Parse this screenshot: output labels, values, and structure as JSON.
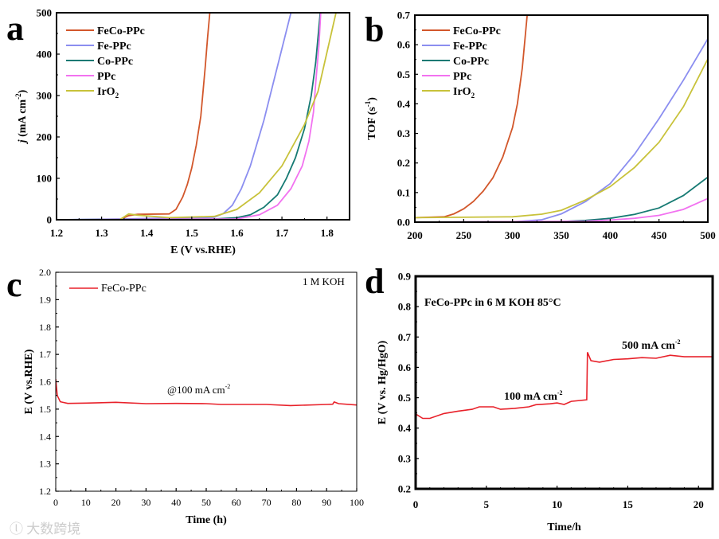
{
  "chart_data": [
    {
      "panel": "a",
      "type": "line",
      "xlabel": "E (V vs.RHE)",
      "ylabel_italic": "j",
      "ylabel": " (mA cm",
      "ylabel_sup": "-2",
      "ylabel_end": ")",
      "xlim": [
        1.2,
        1.85
      ],
      "ylim": [
        0,
        500
      ],
      "xticks": [
        1.2,
        1.3,
        1.4,
        1.5,
        1.6,
        1.7,
        1.8
      ],
      "yticks": [
        0,
        100,
        200,
        300,
        400,
        500
      ],
      "xtick_labels": [
        "1.2",
        "1.3",
        "1.4",
        "1.5",
        "1.6",
        "1.7",
        "1.8"
      ],
      "ytick_labels": [
        "0",
        "100",
        "200",
        "300",
        "400",
        "500"
      ],
      "legend_position": "top-left",
      "series": [
        {
          "name": "FeCo-PPc",
          "color": "#d2572b",
          "points": [
            [
              1.2,
              0
            ],
            [
              1.34,
              0
            ],
            [
              1.36,
              10
            ],
            [
              1.38,
              13
            ],
            [
              1.45,
              14
            ],
            [
              1.465,
              25
            ],
            [
              1.48,
              55
            ],
            [
              1.49,
              85
            ],
            [
              1.5,
              125
            ],
            [
              1.51,
              180
            ],
            [
              1.52,
              250
            ],
            [
              1.53,
              370
            ],
            [
              1.535,
              440
            ],
            [
              1.54,
              500
            ]
          ]
        },
        {
          "name": "Fe-PPc",
          "color": "#8b8ef0",
          "points": [
            [
              1.2,
              0
            ],
            [
              1.35,
              2
            ],
            [
              1.4,
              3
            ],
            [
              1.55,
              6
            ],
            [
              1.57,
              15
            ],
            [
              1.59,
              35
            ],
            [
              1.61,
              75
            ],
            [
              1.63,
              130
            ],
            [
              1.66,
              240
            ],
            [
              1.69,
              370
            ],
            [
              1.72,
              500
            ]
          ]
        },
        {
          "name": "Co-PPc",
          "color": "#167a73",
          "points": [
            [
              1.2,
              0
            ],
            [
              1.55,
              2
            ],
            [
              1.6,
              5
            ],
            [
              1.63,
              12
            ],
            [
              1.66,
              30
            ],
            [
              1.69,
              60
            ],
            [
              1.71,
              100
            ],
            [
              1.73,
              150
            ],
            [
              1.75,
              220
            ],
            [
              1.765,
              300
            ],
            [
              1.775,
              380
            ],
            [
              1.785,
              500
            ]
          ]
        },
        {
          "name": "PPc",
          "color": "#f272f0",
          "points": [
            [
              1.2,
              0
            ],
            [
              1.6,
              2
            ],
            [
              1.65,
              12
            ],
            [
              1.69,
              35
            ],
            [
              1.72,
              75
            ],
            [
              1.745,
              130
            ],
            [
              1.76,
              190
            ],
            [
              1.77,
              260
            ],
            [
              1.775,
              330
            ],
            [
              1.782,
              420
            ],
            [
              1.786,
              500
            ]
          ]
        },
        {
          "name": "IrO",
          "name_sub": "2",
          "color": "#c8c23a",
          "points": [
            [
              1.2,
              0
            ],
            [
              1.34,
              0
            ],
            [
              1.36,
              14
            ],
            [
              1.38,
              11
            ],
            [
              1.45,
              5
            ],
            [
              1.55,
              8
            ],
            [
              1.6,
              25
            ],
            [
              1.65,
              65
            ],
            [
              1.7,
              130
            ],
            [
              1.75,
              230
            ],
            [
              1.78,
              310
            ],
            [
              1.82,
              500
            ]
          ]
        }
      ]
    },
    {
      "panel": "b",
      "type": "line",
      "xlabel": "",
      "ylabel": "TOF (s",
      "ylabel_sup": "-1",
      "ylabel_end": ")",
      "xlim": [
        200,
        500
      ],
      "ylim": [
        0,
        0.7
      ],
      "xticks": [
        200,
        250,
        300,
        350,
        400,
        450,
        500
      ],
      "yticks": [
        0,
        0.1,
        0.2,
        0.3,
        0.4,
        0.5,
        0.6,
        0.7
      ],
      "xtick_labels": [
        "200",
        "250",
        "300",
        "350",
        "400",
        "450",
        "500"
      ],
      "ytick_labels": [
        "0.0",
        "0.1",
        "0.2",
        "0.3",
        "0.4",
        "0.5",
        "0.6",
        "0.7"
      ],
      "legend_position": "top-left",
      "series": [
        {
          "name": "FeCo-PPc",
          "color": "#d2572b",
          "points": [
            [
              200,
              0.015
            ],
            [
              230,
              0.018
            ],
            [
              240,
              0.028
            ],
            [
              250,
              0.045
            ],
            [
              260,
              0.07
            ],
            [
              270,
              0.105
            ],
            [
              280,
              0.15
            ],
            [
              290,
              0.22
            ],
            [
              300,
              0.32
            ],
            [
              305,
              0.4
            ],
            [
              310,
              0.52
            ],
            [
              315,
              0.7
            ]
          ]
        },
        {
          "name": "Fe-PPc",
          "color": "#8b8ef0",
          "points": [
            [
              200,
              0
            ],
            [
              300,
              0.001
            ],
            [
              330,
              0.008
            ],
            [
              350,
              0.028
            ],
            [
              375,
              0.07
            ],
            [
              400,
              0.13
            ],
            [
              425,
              0.23
            ],
            [
              450,
              0.35
            ],
            [
              475,
              0.48
            ],
            [
              500,
              0.62
            ]
          ]
        },
        {
          "name": "Co-PPc",
          "color": "#167a73",
          "points": [
            [
              200,
              0
            ],
            [
              350,
              0.002
            ],
            [
              375,
              0.006
            ],
            [
              400,
              0.013
            ],
            [
              425,
              0.026
            ],
            [
              450,
              0.048
            ],
            [
              475,
              0.09
            ],
            [
              500,
              0.152
            ]
          ]
        },
        {
          "name": "PPc",
          "color": "#f272f0",
          "points": [
            [
              200,
              0
            ],
            [
              375,
              0.003
            ],
            [
              400,
              0.007
            ],
            [
              425,
              0.013
            ],
            [
              450,
              0.023
            ],
            [
              475,
              0.043
            ],
            [
              500,
              0.08
            ]
          ]
        },
        {
          "name": "IrO",
          "name_sub": "2",
          "color": "#c8c23a",
          "points": [
            [
              200,
              0.015
            ],
            [
              300,
              0.018
            ],
            [
              330,
              0.027
            ],
            [
              350,
              0.04
            ],
            [
              375,
              0.075
            ],
            [
              400,
              0.12
            ],
            [
              425,
              0.185
            ],
            [
              450,
              0.27
            ],
            [
              475,
              0.39
            ],
            [
              500,
              0.552
            ]
          ]
        }
      ]
    },
    {
      "panel": "c",
      "type": "line",
      "xlabel": "Time (h)",
      "ylabel": "E (V vs.RHE)",
      "xlim": [
        0,
        100
      ],
      "ylim": [
        1.2,
        2.0
      ],
      "xticks": [
        0,
        10,
        20,
        30,
        40,
        50,
        60,
        70,
        80,
        90,
        100
      ],
      "yticks": [
        1.2,
        1.3,
        1.4,
        1.5,
        1.6,
        1.7,
        1.8,
        1.9,
        2.0
      ],
      "xtick_labels": [
        "0",
        "10",
        "20",
        "30",
        "40",
        "50",
        "60",
        "70",
        "80",
        "90",
        "100"
      ],
      "ytick_labels": [
        "1.2",
        "1.3",
        "1.4",
        "1.5",
        "1.6",
        "1.7",
        "1.8",
        "1.9",
        "2.0"
      ],
      "legend_position": "top-left",
      "annotations": {
        "condition": "1 M KOH",
        "current": "@100 mA cm",
        "current_sup": "-2"
      },
      "series": [
        {
          "name": "FeCo-PPc",
          "color": "#e8212a",
          "points": [
            [
              0,
              1.61
            ],
            [
              0.5,
              1.55
            ],
            [
              1.5,
              1.527
            ],
            [
              4,
              1.521
            ],
            [
              10,
              1.522
            ],
            [
              20,
              1.525
            ],
            [
              30,
              1.52
            ],
            [
              40,
              1.521
            ],
            [
              50,
              1.52
            ],
            [
              55,
              1.517
            ],
            [
              70,
              1.517
            ],
            [
              78,
              1.513
            ],
            [
              90,
              1.517
            ],
            [
              92,
              1.518
            ],
            [
              92.5,
              1.526
            ],
            [
              94,
              1.52
            ],
            [
              100,
              1.515
            ]
          ]
        }
      ]
    },
    {
      "panel": "d",
      "type": "line",
      "xlabel": "Time/h",
      "ylabel": "E (V vs. Hg/HgO)",
      "xlim": [
        0,
        21
      ],
      "ylim": [
        0.2,
        0.9
      ],
      "xticks": [
        0,
        5,
        10,
        15,
        20
      ],
      "yticks": [
        0.2,
        0.3,
        0.4,
        0.5,
        0.6,
        0.7,
        0.8,
        0.9
      ],
      "xtick_labels": [
        "0",
        "5",
        "10",
        "15",
        "20"
      ],
      "ytick_labels": [
        "0.2",
        "0.3",
        "0.4",
        "0.5",
        "0.6",
        "0.7",
        "0.8",
        "0.9"
      ],
      "title": "FeCo-PPc in 6 M KOH 85°C",
      "annotations": {
        "low": "100 mA cm",
        "low_sup": "-2",
        "high": "500 mA cm",
        "high_sup": "-2"
      },
      "series": [
        {
          "name": "FeCo-PPc",
          "color": "#e8212a",
          "points": [
            [
              0,
              0.4
            ],
            [
              0.05,
              0.445
            ],
            [
              0.5,
              0.432
            ],
            [
              1,
              0.432
            ],
            [
              2,
              0.448
            ],
            [
              3,
              0.456
            ],
            [
              4,
              0.462
            ],
            [
              4.5,
              0.47
            ],
            [
              5.5,
              0.47
            ],
            [
              6,
              0.462
            ],
            [
              7,
              0.465
            ],
            [
              8,
              0.47
            ],
            [
              8.5,
              0.477
            ],
            [
              9.5,
              0.48
            ],
            [
              10,
              0.483
            ],
            [
              10.5,
              0.478
            ],
            [
              11,
              0.488
            ],
            [
              12.1,
              0.493
            ],
            [
              12.15,
              0.65
            ],
            [
              12.4,
              0.622
            ],
            [
              13,
              0.617
            ],
            [
              14,
              0.626
            ],
            [
              15,
              0.628
            ],
            [
              16,
              0.632
            ],
            [
              17,
              0.63
            ],
            [
              18,
              0.64
            ],
            [
              19,
              0.635
            ],
            [
              21,
              0.635
            ]
          ]
        }
      ]
    }
  ],
  "panel_labels": [
    "a",
    "b",
    "c",
    "d"
  ],
  "watermark": "大数跨境"
}
